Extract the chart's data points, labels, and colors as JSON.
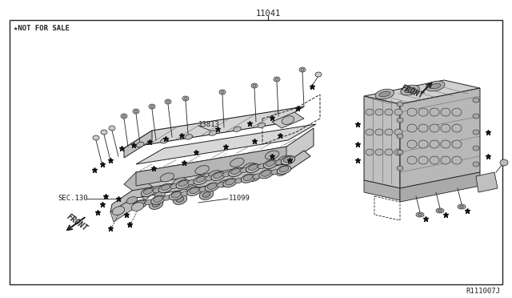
{
  "bg_color": "#ffffff",
  "lc": "#222222",
  "gray_light": "#c8c8c8",
  "gray_med": "#aaaaaa",
  "gray_dark": "#666666",
  "title_above": "11041",
  "label_nfs": "★NOT FOR SALE",
  "label_front_left": "FRONT",
  "label_front_right": "FRONT",
  "label_sec130": "SEC.130",
  "label_13813": "13813",
  "label_11099": "11099",
  "footer": "R111007J",
  "fig_width": 6.4,
  "fig_height": 3.72,
  "dpi": 100
}
